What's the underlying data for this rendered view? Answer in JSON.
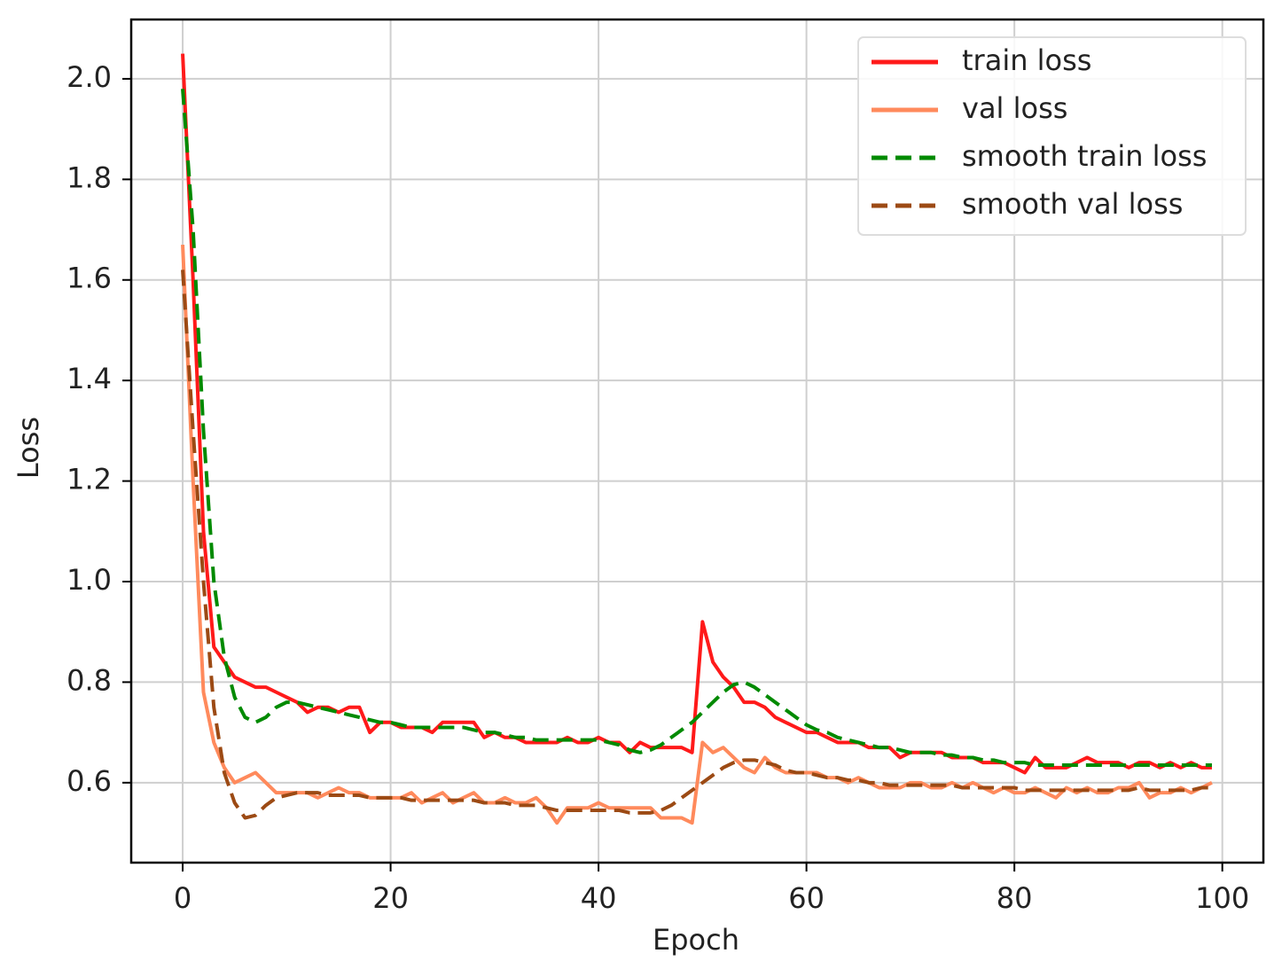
{
  "chart_data": {
    "type": "line",
    "x_label": "Epoch",
    "y_label": "Loss",
    "x": [
      0,
      1,
      2,
      3,
      4,
      5,
      6,
      7,
      8,
      9,
      10,
      11,
      12,
      13,
      14,
      15,
      16,
      17,
      18,
      19,
      20,
      21,
      22,
      23,
      24,
      25,
      26,
      27,
      28,
      29,
      30,
      31,
      32,
      33,
      34,
      35,
      36,
      37,
      38,
      39,
      40,
      41,
      42,
      43,
      44,
      45,
      46,
      47,
      48,
      49,
      50,
      51,
      52,
      53,
      54,
      55,
      56,
      57,
      58,
      59,
      60,
      61,
      62,
      63,
      64,
      65,
      66,
      67,
      68,
      69,
      70,
      71,
      72,
      73,
      74,
      75,
      76,
      77,
      78,
      79,
      80,
      81,
      82,
      83,
      84,
      85,
      86,
      87,
      88,
      89,
      90,
      91,
      92,
      93,
      94,
      95,
      96,
      97,
      98,
      99
    ],
    "series": [
      {
        "name": "train loss",
        "color": "#ff1a1a",
        "linestyle": "solid",
        "values": [
          2.05,
          1.6,
          1.1,
          0.87,
          0.84,
          0.81,
          0.8,
          0.79,
          0.79,
          0.78,
          0.77,
          0.76,
          0.74,
          0.75,
          0.75,
          0.74,
          0.75,
          0.75,
          0.7,
          0.72,
          0.72,
          0.71,
          0.71,
          0.71,
          0.7,
          0.72,
          0.72,
          0.72,
          0.72,
          0.69,
          0.7,
          0.69,
          0.69,
          0.68,
          0.68,
          0.68,
          0.68,
          0.69,
          0.68,
          0.68,
          0.69,
          0.68,
          0.68,
          0.66,
          0.68,
          0.67,
          0.67,
          0.67,
          0.67,
          0.66,
          0.92,
          0.84,
          0.81,
          0.79,
          0.76,
          0.76,
          0.75,
          0.73,
          0.72,
          0.71,
          0.7,
          0.7,
          0.69,
          0.68,
          0.68,
          0.68,
          0.67,
          0.67,
          0.67,
          0.65,
          0.66,
          0.66,
          0.66,
          0.66,
          0.65,
          0.65,
          0.65,
          0.64,
          0.64,
          0.64,
          0.63,
          0.62,
          0.65,
          0.63,
          0.63,
          0.63,
          0.64,
          0.65,
          0.64,
          0.64,
          0.64,
          0.63,
          0.64,
          0.64,
          0.63,
          0.64,
          0.63,
          0.64,
          0.63,
          0.63
        ]
      },
      {
        "name": "val loss",
        "color": "#ff8a5c",
        "linestyle": "solid",
        "values": [
          1.67,
          1.2,
          0.78,
          0.68,
          0.63,
          0.6,
          0.61,
          0.62,
          0.6,
          0.58,
          0.58,
          0.58,
          0.58,
          0.57,
          0.58,
          0.59,
          0.58,
          0.58,
          0.57,
          0.57,
          0.57,
          0.57,
          0.58,
          0.56,
          0.57,
          0.58,
          0.56,
          0.57,
          0.58,
          0.56,
          0.56,
          0.57,
          0.56,
          0.56,
          0.57,
          0.55,
          0.52,
          0.55,
          0.55,
          0.55,
          0.56,
          0.55,
          0.55,
          0.55,
          0.55,
          0.55,
          0.53,
          0.53,
          0.53,
          0.52,
          0.68,
          0.66,
          0.67,
          0.65,
          0.63,
          0.62,
          0.65,
          0.63,
          0.62,
          0.62,
          0.62,
          0.62,
          0.61,
          0.61,
          0.6,
          0.61,
          0.6,
          0.59,
          0.59,
          0.59,
          0.6,
          0.6,
          0.59,
          0.59,
          0.6,
          0.59,
          0.6,
          0.59,
          0.58,
          0.59,
          0.58,
          0.58,
          0.59,
          0.58,
          0.57,
          0.59,
          0.58,
          0.59,
          0.58,
          0.58,
          0.59,
          0.59,
          0.6,
          0.57,
          0.58,
          0.58,
          0.59,
          0.58,
          0.59,
          0.6
        ]
      },
      {
        "name": "smooth train loss",
        "color": "#008a00",
        "linestyle": "dashed",
        "values": [
          1.98,
          1.7,
          1.3,
          1.0,
          0.85,
          0.77,
          0.73,
          0.72,
          0.73,
          0.75,
          0.76,
          0.76,
          0.755,
          0.75,
          0.745,
          0.74,
          0.735,
          0.73,
          0.725,
          0.72,
          0.72,
          0.715,
          0.71,
          0.71,
          0.71,
          0.71,
          0.71,
          0.71,
          0.705,
          0.7,
          0.7,
          0.695,
          0.69,
          0.69,
          0.685,
          0.685,
          0.685,
          0.685,
          0.685,
          0.685,
          0.685,
          0.68,
          0.675,
          0.665,
          0.66,
          0.665,
          0.675,
          0.69,
          0.705,
          0.72,
          0.74,
          0.76,
          0.78,
          0.795,
          0.8,
          0.79,
          0.775,
          0.76,
          0.745,
          0.73,
          0.715,
          0.705,
          0.7,
          0.69,
          0.685,
          0.68,
          0.675,
          0.67,
          0.67,
          0.665,
          0.66,
          0.66,
          0.66,
          0.655,
          0.655,
          0.65,
          0.65,
          0.645,
          0.645,
          0.64,
          0.64,
          0.64,
          0.635,
          0.635,
          0.635,
          0.635,
          0.635,
          0.635,
          0.635,
          0.635,
          0.635,
          0.635,
          0.635,
          0.635,
          0.635,
          0.635,
          0.635,
          0.635,
          0.635,
          0.635
        ]
      },
      {
        "name": "smooth val loss",
        "color": "#9c4a14",
        "linestyle": "dashed",
        "values": [
          1.62,
          1.3,
          1.0,
          0.75,
          0.62,
          0.56,
          0.53,
          0.535,
          0.555,
          0.57,
          0.575,
          0.58,
          0.58,
          0.58,
          0.575,
          0.575,
          0.575,
          0.575,
          0.57,
          0.57,
          0.57,
          0.57,
          0.565,
          0.565,
          0.565,
          0.565,
          0.565,
          0.565,
          0.565,
          0.56,
          0.56,
          0.56,
          0.555,
          0.555,
          0.555,
          0.55,
          0.545,
          0.545,
          0.545,
          0.545,
          0.545,
          0.545,
          0.545,
          0.54,
          0.54,
          0.54,
          0.545,
          0.555,
          0.57,
          0.585,
          0.6,
          0.615,
          0.63,
          0.64,
          0.645,
          0.645,
          0.64,
          0.635,
          0.625,
          0.62,
          0.62,
          0.615,
          0.61,
          0.61,
          0.605,
          0.605,
          0.6,
          0.6,
          0.595,
          0.595,
          0.595,
          0.595,
          0.595,
          0.595,
          0.595,
          0.59,
          0.59,
          0.59,
          0.59,
          0.59,
          0.59,
          0.585,
          0.585,
          0.585,
          0.585,
          0.585,
          0.585,
          0.585,
          0.585,
          0.585,
          0.585,
          0.585,
          0.59,
          0.585,
          0.585,
          0.585,
          0.585,
          0.585,
          0.59,
          0.59
        ]
      }
    ],
    "xlim": [
      -4.95,
      103.95
    ],
    "xticks": [
      0,
      20,
      40,
      60,
      80,
      100
    ],
    "ylim": [
      0.441,
      2.118
    ],
    "yticks": [
      0.6,
      0.8,
      {
        "value": 1,
        "label": "1.0"
      },
      1.2,
      1.4,
      1.6,
      1.8,
      {
        "value": 2,
        "label": "2.0"
      }
    ],
    "grid": true,
    "legend": "upper right"
  }
}
